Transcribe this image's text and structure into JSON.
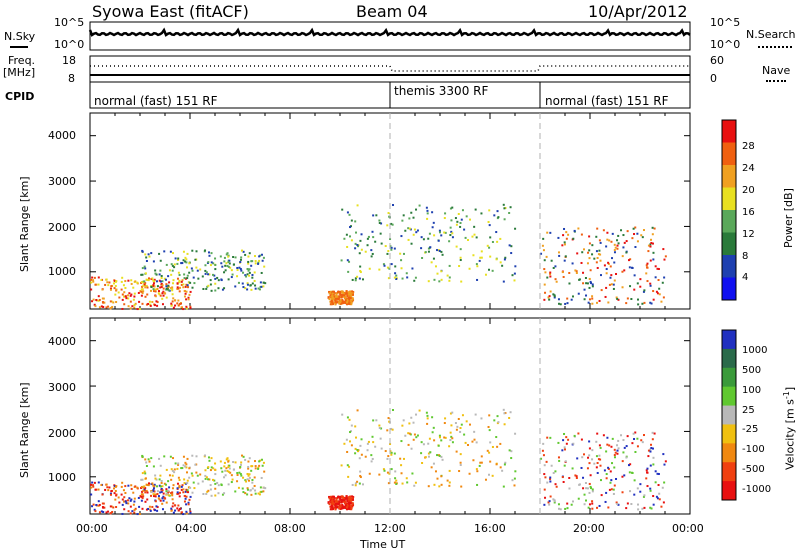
{
  "header": {
    "station": "Syowa East (fitACF)",
    "beam": "Beam 04",
    "date": "10/Apr/2012"
  },
  "side_labels": {
    "nsky": "N.Sky",
    "freq": "Freq.",
    "freq_unit": "[MHz]",
    "cpid": "CPID",
    "nsearch": "N.Search",
    "nave": "Nave",
    "nsky_ticks": [
      "10^5",
      "10^0"
    ],
    "nsearch_ticks": [
      "10^5",
      "10^0"
    ],
    "freq_ticks": [
      "18",
      "8"
    ],
    "nave_ticks": [
      "60",
      "0"
    ]
  },
  "cpid_modes": [
    {
      "label": "normal (fast) 151 RF",
      "start_hour": 0
    },
    {
      "label": "themis 3300 RF",
      "start_hour": 12
    },
    {
      "label": "normal (fast) 151 RF",
      "start_hour": 18
    }
  ],
  "chart_data": [
    {
      "type": "heatmap",
      "title": "Power",
      "ylabel": "Slant Range [km]",
      "xlabel": "",
      "x_range_hours": [
        0,
        24
      ],
      "ylim": [
        180,
        4500
      ],
      "y_ticks": [
        "1000",
        "2000",
        "3000",
        "4000"
      ],
      "colorbar": {
        "label": "Power [dB]",
        "ticks": [
          "4",
          "8",
          "12",
          "16",
          "20",
          "24",
          "28"
        ],
        "colors": [
          "#1010f0",
          "#1e40b0",
          "#2a7a3a",
          "#5aa85a",
          "#e8e020",
          "#f0a020",
          "#f06010",
          "#e81010"
        ]
      }
    },
    {
      "type": "heatmap",
      "title": "Velocity",
      "ylabel": "Slant Range [km]",
      "xlabel": "Time UT",
      "x_range_hours": [
        0,
        24
      ],
      "ylim": [
        180,
        4500
      ],
      "y_ticks": [
        "1000",
        "2000",
        "3000",
        "4000"
      ],
      "x_ticks": [
        "00:00",
        "04:00",
        "08:00",
        "12:00",
        "16:00",
        "20:00",
        "00:00"
      ],
      "colorbar": {
        "label": "Velocity [m s",
        "label_sup": "-1",
        "label_end": "]",
        "ticks": [
          "1000",
          "500",
          "100",
          "25",
          "-25",
          "-100",
          "-500",
          "-1000"
        ],
        "colors": [
          "#2030c0",
          "#2a6a4a",
          "#3a9a3a",
          "#60c830",
          "#b8b8b8",
          "#f0c010",
          "#f08810",
          "#f04010",
          "#e81010"
        ]
      }
    }
  ],
  "colors": {
    "axis": "#000000",
    "guide": "#b0b0b0"
  }
}
